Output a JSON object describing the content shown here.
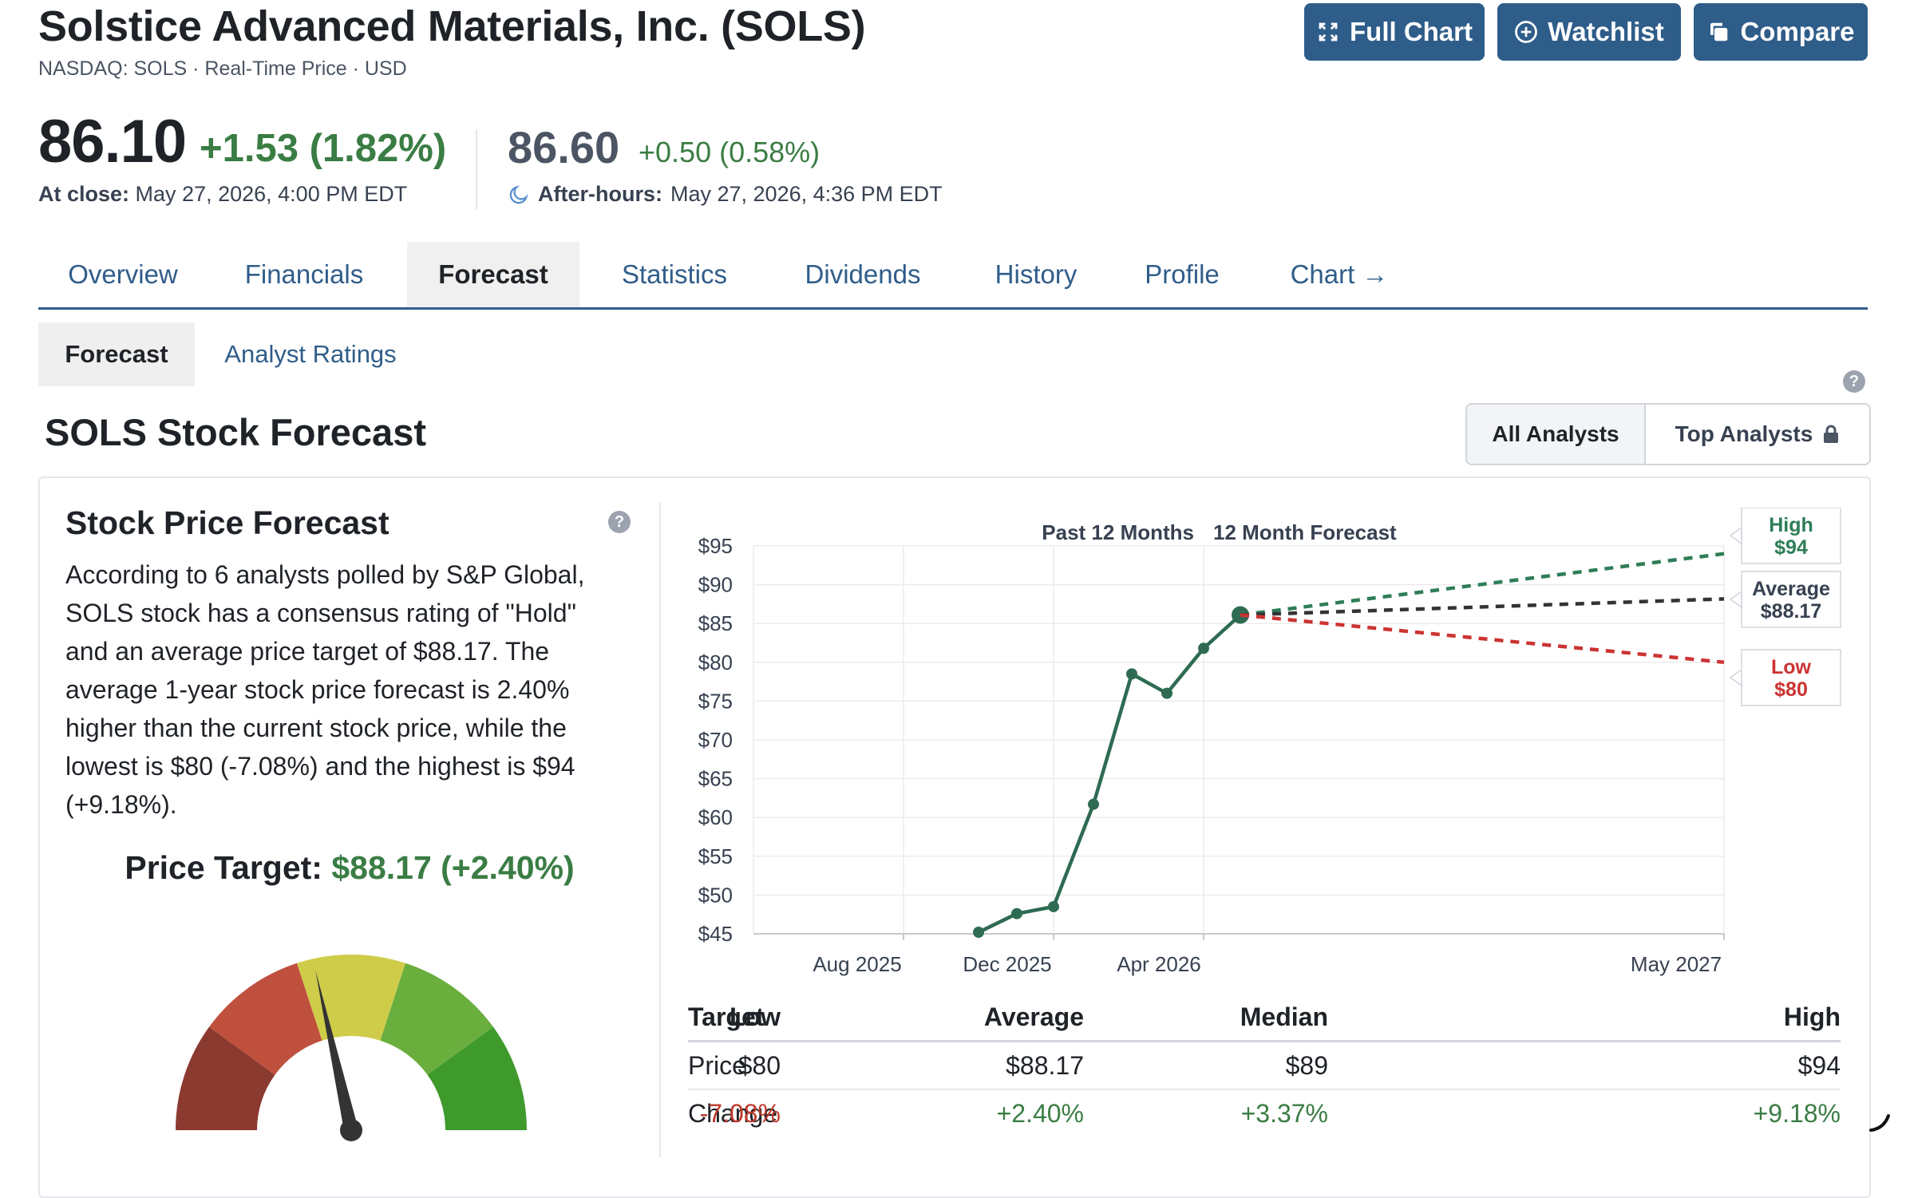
{
  "header": {
    "title": "Solstice Advanced Materials, Inc. (SOLS)",
    "subline": "NASDAQ: SOLS · Real-Time Price · USD",
    "buttons": {
      "full_chart": "Full Chart",
      "watchlist": "Watchlist",
      "compare": "Compare"
    },
    "price": "86.10",
    "change": "+1.53 (1.82%)",
    "close_label": "At close:",
    "close_time": "May 27, 2026, 4:00 PM EDT",
    "ah_price": "86.60",
    "ah_change": "+0.50 (0.58%)",
    "ah_label": "After-hours:",
    "ah_time": "May 27, 2026, 4:36 PM EDT",
    "accent": "#2f5d8a",
    "positive": "#3a7d44"
  },
  "tabs": [
    "Overview",
    "Financials",
    "Forecast",
    "Statistics",
    "Dividends",
    "History",
    "Profile",
    "Chart →"
  ],
  "subtabs": {
    "forecast": "Forecast",
    "analyst_ratings": "Analyst Ratings"
  },
  "section_title": "SOLS Stock Forecast",
  "toggle": {
    "all": "All Analysts",
    "top": "Top Analysts"
  },
  "card": {
    "title": "Stock Price Forecast",
    "paragraph": "According to 6 analysts polled by S&P Global, SOLS stock has a consensus rating of \"Hold\" and an average price target of $88.17. The average 1-year stock price forecast is 2.40% higher than the current stock price, while the lowest is $80 (-7.08%) and the highest is $94 (+9.18%).",
    "price_target_label": "Price Target:",
    "price_target_value": "$88.17 (+2.40%)",
    "gauge_colors": [
      "#8b3a2f",
      "#c0503e",
      "#cfcc4a",
      "#6aae3e",
      "#3f9a2c"
    ],
    "gauge_rating": "Hold",
    "gauge_level": 0.43
  },
  "chart_data": {
    "type": "line",
    "title": "",
    "section_labels": [
      "Past 12 Months",
      "12 Month Forecast"
    ],
    "yticks": [
      "$95",
      "$90",
      "$85",
      "$80",
      "$75",
      "$70",
      "$65",
      "$60",
      "$55",
      "$50",
      "$45"
    ],
    "ylim": [
      45,
      95
    ],
    "xticks": [
      "Aug 2025",
      "Dec 2025",
      "Apr 2026",
      "May 2027"
    ],
    "history": {
      "x": [
        "Nov 2025",
        "Dec 2025",
        "Jan 2026",
        "Feb 2026",
        "Mar 2026",
        "Apr 2026",
        "May 2026",
        "May 2026"
      ],
      "y": [
        45.2,
        47.6,
        48.5,
        61.7,
        78.5,
        76.0,
        81.8,
        86.1
      ]
    },
    "forecast": [
      {
        "label": "High",
        "value_label": "$94",
        "start": 86.1,
        "end": 94,
        "color": "#2e7d57"
      },
      {
        "label": "Average",
        "value_label": "$88.17",
        "start": 86.1,
        "end": 88.17,
        "color": "#333333"
      },
      {
        "label": "Low",
        "value_label": "$80",
        "start": 86.1,
        "end": 80,
        "color": "#cc3333"
      }
    ],
    "line_color": "#2e6b52",
    "grid": true
  },
  "table": {
    "headers": [
      "Target",
      "Low",
      "Average",
      "Median",
      "High"
    ],
    "rows": [
      {
        "label": "Price",
        "cells": [
          "$80",
          "$88.17",
          "$89",
          "$94"
        ]
      },
      {
        "label": "Change",
        "cells": [
          "-7.08%",
          "+2.40%",
          "+3.37%",
          "+9.18%"
        ]
      }
    ]
  }
}
